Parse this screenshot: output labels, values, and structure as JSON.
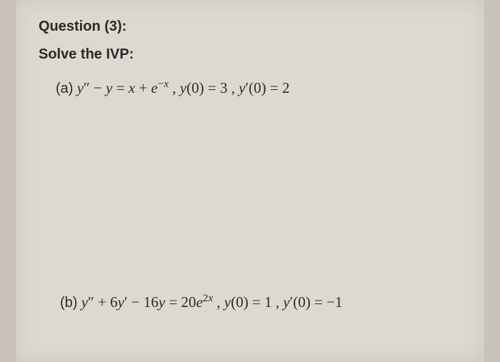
{
  "header": {
    "question_label": "Question (3):",
    "instruction": "Solve the IVP:"
  },
  "problems": {
    "a": {
      "label": "(a)",
      "equation": "y″ − y = x + e",
      "exponent": "−x",
      "conditions": " , y(0) = 3 , y′(0) = 2"
    },
    "b": {
      "label": "(b)",
      "equation": "y″ + 6y′ − 16y = 20e",
      "exponent": "2x",
      "conditions": " , y(0) = 1 , y′(0) = −1"
    }
  },
  "colors": {
    "background": "#c9c2b8",
    "page_bg": "#dcd9d0",
    "text": "#2a2a2a"
  }
}
